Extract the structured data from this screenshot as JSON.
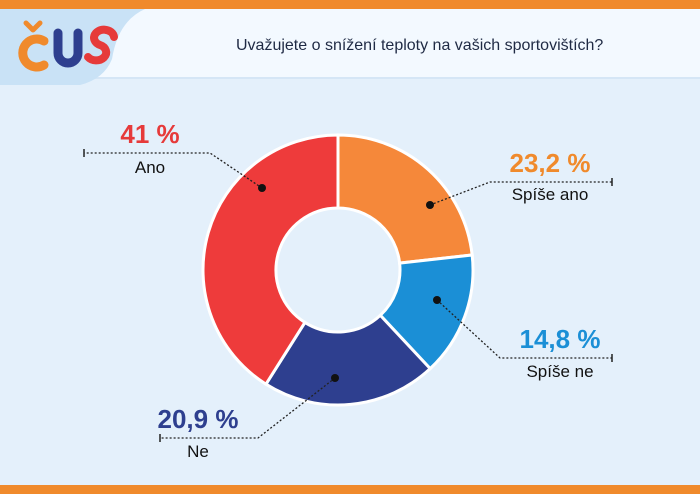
{
  "header": {
    "logo_text": "ČUS",
    "question": "Uvažujete o snížení teploty na vašich sportovištích?"
  },
  "colors": {
    "accent_bar": "#f08a2c",
    "background": "#e4f0fb"
  },
  "chart_data": {
    "type": "pie",
    "donut": true,
    "title": "Uvažujete o snížení teploty na vašich sportovištích?",
    "legend": "none",
    "slices": [
      {
        "label": "Spíše ano",
        "value": 23.2,
        "value_label": "23,2 %",
        "color": "#f5883a",
        "label_color": "#f08a2c"
      },
      {
        "label": "Spíše ne",
        "value": 14.8,
        "value_label": "14,8 %",
        "color": "#1b8fd6",
        "label_color": "#1b8fd6"
      },
      {
        "label": "Ne",
        "value": 20.9,
        "value_label": "20,9 %",
        "color": "#2e3f8f",
        "label_color": "#2e3f8f"
      },
      {
        "label": "Ano",
        "value": 41,
        "value_label": "41 %",
        "color": "#ee3b3b",
        "label_color": "#e63a3a"
      }
    ]
  }
}
